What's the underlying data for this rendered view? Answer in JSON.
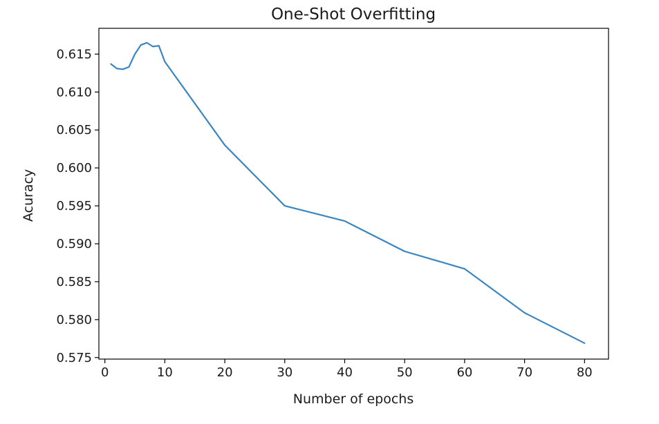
{
  "chart_data": {
    "type": "line",
    "title": "One-Shot Overfitting",
    "xlabel": "Number of epochs",
    "ylabel": "Acuracy",
    "xlim": [
      -1,
      84
    ],
    "ylim": [
      0.5748,
      0.6184
    ],
    "xticks": [
      0,
      10,
      20,
      30,
      40,
      50,
      60,
      70,
      80
    ],
    "yticks": [
      0.575,
      0.58,
      0.585,
      0.59,
      0.595,
      0.6,
      0.605,
      0.61,
      0.615
    ],
    "grid": false,
    "series": [
      {
        "color": "#3a85c0",
        "x": [
          1,
          2,
          3,
          4,
          5,
          6,
          7,
          8,
          9,
          10,
          20,
          30,
          40,
          50,
          60,
          70,
          80
        ],
        "y": [
          0.6137,
          0.6131,
          0.613,
          0.6133,
          0.615,
          0.6162,
          0.6165,
          0.616,
          0.6161,
          0.614,
          0.603,
          0.595,
          0.593,
          0.589,
          0.5867,
          0.5809,
          0.5769
        ]
      }
    ]
  }
}
